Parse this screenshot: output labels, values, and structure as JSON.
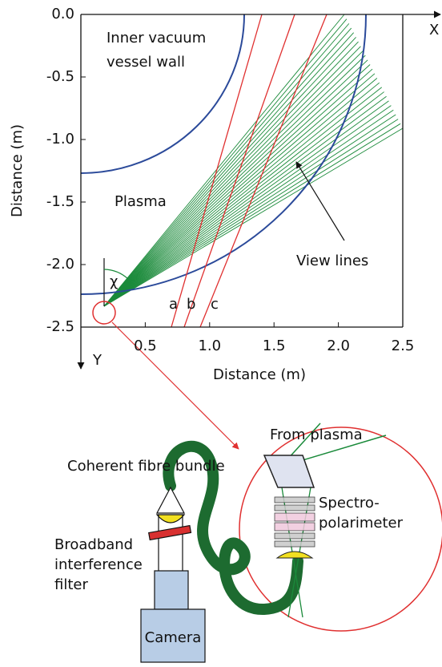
{
  "chart_data": {
    "type": "diagram-plot",
    "x_label": "Distance (m)",
    "y_label": "Distance (m)",
    "xlim": [
      0,
      2.5
    ],
    "ylim": [
      -2.5,
      0
    ],
    "xticks": [
      0.5,
      {
        "value": 1,
        "label": "1.0"
      },
      1.5,
      {
        "value": 2,
        "label": "2.0"
      },
      2.5
    ],
    "yticks": [
      {
        "value": 0,
        "label": "0.0"
      },
      -0.5,
      {
        "value": -1,
        "label": "-1.0"
      },
      -1.5,
      {
        "value": -2,
        "label": "-2.0"
      },
      -2.5
    ],
    "axis_names": {
      "x": "X",
      "y": "Y"
    },
    "annotations": {
      "wall": [
        "Inner vacuum",
        "vessel wall"
      ],
      "plasma": "Plasma",
      "view_lines": "View lines",
      "a": "a",
      "b": "b",
      "c": "c",
      "angle": "χ"
    }
  },
  "diagram": {
    "fibre": "Coherent fibre bundle",
    "filter": [
      "Broadband",
      "interference",
      "filter"
    ],
    "camera": "Camera",
    "from_plasma": "From plasma",
    "spectro": [
      "Spectro-",
      "polarimeter"
    ]
  }
}
